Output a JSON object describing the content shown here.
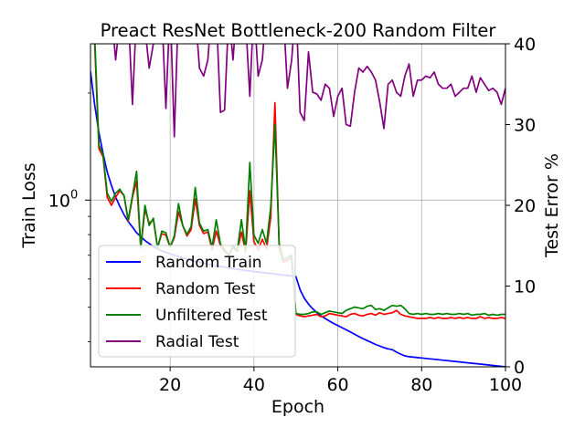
{
  "chart_data": {
    "type": "line",
    "title": "Preact ResNet Bottleneck-200 Random Filter",
    "xlabel": "Epoch",
    "ylabel_left": "Train Loss",
    "ylabel_right": "Test Error %",
    "xlim": [
      1,
      100
    ],
    "ylim_left": [
      0.34,
      2.75
    ],
    "ylim_right": [
      0,
      40
    ],
    "left_scale": "log",
    "grid": true,
    "legend_placement": "lower-left",
    "x_ticks": [
      20,
      40,
      60,
      80,
      100
    ],
    "x_tick_labels": [
      "20",
      "40",
      "60",
      "80",
      "100"
    ],
    "left_ticks": [
      1.0
    ],
    "left_tick_labels": [
      "10^0"
    ],
    "right_ticks": [
      0,
      10,
      20,
      30,
      40
    ],
    "right_tick_labels": [
      "0",
      "10",
      "20",
      "30",
      "40"
    ],
    "series": [
      {
        "name": "Random Train",
        "axis": "left",
        "color": "#0000ff",
        "x": [
          1,
          2,
          3,
          4,
          5,
          6,
          7,
          8,
          9,
          10,
          11,
          12,
          13,
          14,
          15,
          16,
          17,
          18,
          19,
          20,
          21,
          22,
          23,
          24,
          25,
          26,
          27,
          28,
          29,
          30,
          31,
          32,
          33,
          34,
          35,
          36,
          37,
          38,
          39,
          40,
          41,
          42,
          43,
          44,
          45,
          46,
          47,
          48,
          49,
          50,
          51,
          52,
          53,
          54,
          55,
          56,
          57,
          58,
          59,
          60,
          61,
          62,
          63,
          64,
          65,
          66,
          67,
          68,
          69,
          70,
          71,
          72,
          73,
          74,
          75,
          76,
          77,
          78,
          79,
          80,
          81,
          82,
          83,
          84,
          85,
          86,
          87,
          88,
          89,
          90,
          91,
          92,
          93,
          94,
          95,
          96,
          97,
          98,
          99,
          100
        ],
        "y": [
          2.3,
          1.85,
          1.55,
          1.35,
          1.2,
          1.1,
          1.02,
          0.96,
          0.91,
          0.87,
          0.84,
          0.81,
          0.79,
          0.77,
          0.755,
          0.74,
          0.73,
          0.72,
          0.713,
          0.706,
          0.7,
          0.694,
          0.688,
          0.683,
          0.678,
          0.673,
          0.669,
          0.665,
          0.661,
          0.657,
          0.654,
          0.651,
          0.648,
          0.645,
          0.642,
          0.639,
          0.637,
          0.634,
          0.632,
          0.63,
          0.628,
          0.626,
          0.624,
          0.622,
          0.62,
          0.618,
          0.616,
          0.614,
          0.612,
          0.61,
          0.56,
          0.53,
          0.51,
          0.495,
          0.483,
          0.473,
          0.465,
          0.457,
          0.45,
          0.444,
          0.438,
          0.432,
          0.426,
          0.42,
          0.414,
          0.408,
          0.403,
          0.398,
          0.393,
          0.389,
          0.385,
          0.382,
          0.38,
          0.374,
          0.369,
          0.365,
          0.363,
          0.362,
          0.361,
          0.36,
          0.359,
          0.358,
          0.357,
          0.356,
          0.355,
          0.354,
          0.353,
          0.352,
          0.351,
          0.35,
          0.349,
          0.348,
          0.347,
          0.346,
          0.345,
          0.344,
          0.343,
          0.342,
          0.341,
          0.34
        ]
      },
      {
        "name": "Random Test",
        "axis": "right",
        "color": "#ff0000",
        "x": [
          1,
          2,
          3,
          4,
          5,
          6,
          7,
          8,
          9,
          10,
          11,
          12,
          13,
          14,
          15,
          16,
          17,
          18,
          19,
          20,
          21,
          22,
          23,
          24,
          25,
          26,
          27,
          28,
          29,
          30,
          31,
          32,
          33,
          34,
          35,
          36,
          37,
          38,
          39,
          40,
          41,
          42,
          43,
          44,
          45,
          46,
          47,
          48,
          49,
          50,
          51,
          52,
          53,
          54,
          55,
          56,
          57,
          58,
          59,
          60,
          61,
          62,
          63,
          64,
          65,
          66,
          67,
          68,
          69,
          70,
          71,
          72,
          73,
          74,
          75,
          76,
          77,
          78,
          79,
          80,
          81,
          82,
          83,
          84,
          85,
          86,
          87,
          88,
          89,
          90,
          91,
          92,
          93,
          94,
          95,
          96,
          97,
          98,
          99,
          100
        ],
        "y": [
          42,
          40,
          27,
          26,
          21,
          20,
          21,
          21.8,
          21.2,
          18,
          21,
          23,
          14.7,
          19.5,
          17.8,
          18.2,
          14.8,
          16.5,
          16.3,
          14.8,
          16,
          19.2,
          17.5,
          16.2,
          17,
          20.8,
          17.5,
          16.5,
          16.7,
          14.5,
          16.8,
          15,
          14.3,
          13.8,
          14.8,
          14.3,
          16.7,
          14.2,
          21.8,
          15.5,
          14.5,
          15.8,
          14.6,
          18.5,
          32.7,
          14.8,
          13,
          13.2,
          13.5,
          6.5,
          6.3,
          6.2,
          6.3,
          6.4,
          6.5,
          6.2,
          6.3,
          6.6,
          6.5,
          6.4,
          6.3,
          6.2,
          6.5,
          6.6,
          6.4,
          6.3,
          6.5,
          6.6,
          6.4,
          6.7,
          6.5,
          6.6,
          6.7,
          7.0,
          6.5,
          6.3,
          6.2,
          6.1,
          6.0,
          6.0,
          6.0,
          6.1,
          6.0,
          6.1,
          6.0,
          6.0,
          6.1,
          6.0,
          6.1,
          6.0,
          6.1,
          6.0,
          6.0,
          6.2,
          6.0,
          6.1,
          6.0,
          6.0,
          6.1,
          6.0
        ]
      },
      {
        "name": "Unfiltered Test",
        "axis": "right",
        "color": "#008000",
        "x": [
          1,
          2,
          3,
          4,
          5,
          6,
          7,
          8,
          9,
          10,
          11,
          12,
          13,
          14,
          15,
          16,
          17,
          18,
          19,
          20,
          21,
          22,
          23,
          24,
          25,
          26,
          27,
          28,
          29,
          30,
          31,
          32,
          33,
          34,
          35,
          36,
          37,
          38,
          39,
          40,
          41,
          42,
          43,
          44,
          45,
          46,
          47,
          48,
          49,
          50,
          51,
          52,
          53,
          54,
          55,
          56,
          57,
          58,
          59,
          60,
          61,
          62,
          63,
          64,
          65,
          66,
          67,
          68,
          69,
          70,
          71,
          72,
          73,
          74,
          75,
          76,
          77,
          78,
          79,
          80,
          81,
          82,
          83,
          84,
          85,
          86,
          87,
          88,
          89,
          90,
          91,
          92,
          93,
          94,
          95,
          96,
          97,
          98,
          99,
          100
        ],
        "y": [
          42,
          41,
          27.5,
          26.2,
          21.5,
          20.5,
          21.5,
          22,
          21.2,
          18.2,
          21.2,
          24.2,
          14.8,
          20,
          17.5,
          18.4,
          14.7,
          16.8,
          16.6,
          14.8,
          16.2,
          20.2,
          17.5,
          16.4,
          17.4,
          22.2,
          17.8,
          16.8,
          17,
          14.8,
          18.2,
          15.2,
          14.5,
          13.8,
          15,
          14.3,
          18.2,
          14.5,
          25.3,
          16.3,
          15.3,
          17,
          15.3,
          19.8,
          30,
          15.3,
          13.3,
          13.5,
          13.8,
          6.6,
          6.5,
          6.5,
          6.6,
          6.8,
          6.8,
          6.5,
          6.7,
          6.9,
          6.8,
          6.7,
          6.6,
          7.0,
          7.2,
          7.4,
          7.3,
          7.2,
          7.5,
          7.6,
          7.1,
          7.2,
          7.0,
          7.3,
          7.6,
          7.5,
          7.6,
          7.2,
          6.6,
          6.5,
          6.6,
          6.5,
          6.6,
          6.5,
          6.5,
          6.6,
          6.5,
          6.6,
          6.5,
          6.5,
          6.6,
          6.5,
          6.6,
          6.4,
          6.5,
          6.5,
          6.6,
          6.4,
          6.5,
          6.4,
          6.5,
          6.5
        ]
      },
      {
        "name": "Radial Test",
        "axis": "right",
        "color": "#800080",
        "x": [
          1,
          2,
          3,
          4,
          5,
          6,
          7,
          8,
          9,
          10,
          11,
          12,
          13,
          14,
          15,
          16,
          17,
          18,
          19,
          20,
          21,
          22,
          23,
          24,
          25,
          26,
          27,
          28,
          29,
          30,
          31,
          32,
          33,
          34,
          35,
          36,
          37,
          38,
          39,
          40,
          41,
          42,
          43,
          44,
          45,
          46,
          47,
          48,
          49,
          50,
          51,
          52,
          53,
          54,
          55,
          56,
          57,
          58,
          59,
          60,
          61,
          62,
          63,
          64,
          65,
          66,
          67,
          68,
          69,
          70,
          71,
          72,
          73,
          74,
          75,
          76,
          77,
          78,
          79,
          80,
          81,
          82,
          83,
          84,
          85,
          86,
          87,
          88,
          89,
          90,
          91,
          92,
          93,
          94,
          95,
          96,
          97,
          98,
          99,
          100
        ],
        "y": [
          45,
          46,
          44,
          43,
          45,
          44,
          38,
          43,
          45,
          44,
          32.5,
          44,
          45,
          42,
          37,
          40,
          45,
          44,
          32,
          45,
          28.5,
          45,
          44,
          43,
          45,
          44,
          37,
          36,
          38,
          45,
          44,
          31.5,
          31.8,
          44,
          38,
          45,
          44,
          43,
          33.5,
          45,
          36,
          38,
          45,
          44,
          43,
          45,
          44,
          34.5,
          38,
          45,
          31.5,
          30.5,
          39,
          34,
          33.8,
          33,
          35,
          34.5,
          31,
          33.5,
          34.5,
          30,
          29.8,
          34,
          37,
          36.5,
          37.2,
          36.5,
          35.5,
          32.8,
          29.5,
          35,
          35.5,
          34,
          33.5,
          36,
          37.5,
          33.5,
          35.5,
          35.5,
          36,
          35.8,
          36.5,
          35,
          34.5,
          34.5,
          35,
          33.5,
          34,
          34.5,
          34.5,
          36,
          34,
          35.8,
          35,
          34.2,
          34.5,
          34,
          32.5,
          34.5
        ]
      }
    ]
  }
}
